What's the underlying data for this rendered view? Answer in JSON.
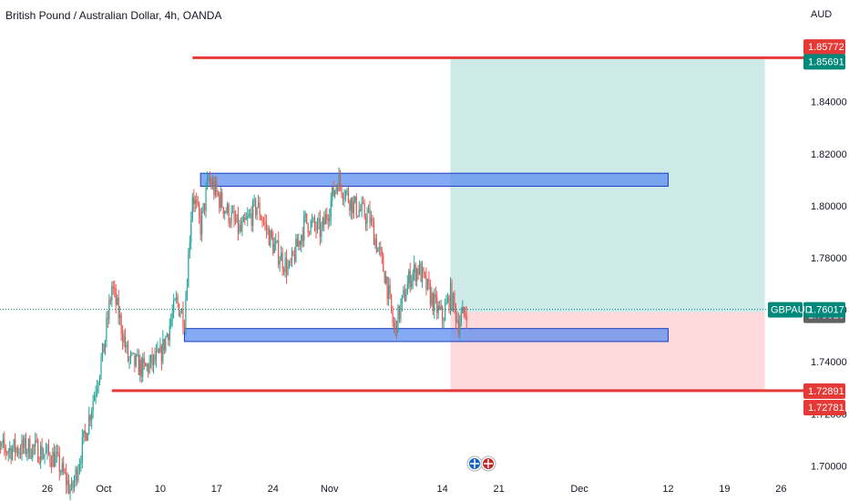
{
  "title": "British Pound / Australian Dollar, 4h, OANDA",
  "colors": {
    "up": "#26a69a",
    "down": "#ef5350",
    "level_line": "#e53935",
    "zone_fill": "#5c8df0",
    "zone_stroke": "#1e3fbf",
    "profit": "#b2dfdb",
    "loss": "#ffcdd2",
    "current": "#00897b",
    "entry_label": "#616161"
  },
  "chart_data": {
    "type": "candlestick",
    "symbol": "GBPAUD",
    "currency": "AUD",
    "ylim": [
      1.69,
      1.87
    ],
    "y_ticks": [
      "1.70000",
      "1.72000",
      "1.74000",
      "1.76000",
      "1.78000",
      "1.80000",
      "1.82000",
      "1.84000"
    ],
    "x_ticks": [
      "26",
      "Oct",
      "10",
      "17",
      "24",
      "Nov",
      "14",
      "21",
      "Dec",
      "12",
      "19",
      "26"
    ],
    "x_tick_dates": [
      "2022-09-26",
      "2022-10-03",
      "2022-10-10",
      "2022-10-17",
      "2022-10-24",
      "2022-10-31",
      "2022-11-14",
      "2022-11-21",
      "2022-12-01",
      "2022-12-12",
      "2022-12-19",
      "2022-12-26"
    ],
    "current_price": "1.76017",
    "price_labels": [
      {
        "value": "1.85772",
        "role": "target-upper"
      },
      {
        "value": "1.85691",
        "role": "target"
      },
      {
        "value": "1.75910",
        "role": "entry"
      },
      {
        "value": "1.72891",
        "role": "stop"
      },
      {
        "value": "1.72781",
        "role": "stop-lower"
      }
    ],
    "horizontal_lines": [
      {
        "price": 1.8569,
        "from": "2022-10-14",
        "to": "2022-12-30"
      },
      {
        "price": 1.7289,
        "from": "2022-10-04",
        "to": "2022-12-30"
      }
    ],
    "zones": [
      {
        "from": "2022-10-15",
        "to": "2022-12-12",
        "low": 1.8075,
        "high": 1.8125
      },
      {
        "from": "2022-10-13",
        "to": "2022-12-12",
        "low": 1.7478,
        "high": 1.7528
      }
    ],
    "position": {
      "from": "2022-11-15",
      "to": "2022-12-24",
      "entry": 1.7591,
      "target": 1.8569,
      "stop": 1.7289
    },
    "anchors": [
      [
        "2022-09-19",
        1.706
      ],
      [
        "2022-09-24",
        1.707
      ],
      [
        "2022-09-27",
        1.703
      ],
      [
        "2022-09-29",
        1.69
      ],
      [
        "2022-10-01",
        1.716
      ],
      [
        "2022-10-03",
        1.745
      ],
      [
        "2022-10-04",
        1.769
      ],
      [
        "2022-10-05",
        1.756
      ],
      [
        "2022-10-06",
        1.741
      ],
      [
        "2022-10-08",
        1.737
      ],
      [
        "2022-10-10",
        1.742
      ],
      [
        "2022-10-12",
        1.763
      ],
      [
        "2022-10-13",
        1.757
      ],
      [
        "2022-10-14",
        1.805
      ],
      [
        "2022-10-15",
        1.792
      ],
      [
        "2022-10-16",
        1.81
      ],
      [
        "2022-10-18",
        1.799
      ],
      [
        "2022-10-20",
        1.79
      ],
      [
        "2022-10-22",
        1.8
      ],
      [
        "2022-10-24",
        1.785
      ],
      [
        "2022-10-26",
        1.775
      ],
      [
        "2022-10-28",
        1.794
      ],
      [
        "2022-10-30",
        1.79
      ],
      [
        "2022-11-01",
        1.81
      ],
      [
        "2022-11-03",
        1.8
      ],
      [
        "2022-11-05",
        1.795
      ],
      [
        "2022-11-07",
        1.772
      ],
      [
        "2022-11-08",
        1.752
      ],
      [
        "2022-11-10",
        1.773
      ],
      [
        "2022-11-11",
        1.776
      ],
      [
        "2022-11-13",
        1.762
      ],
      [
        "2022-11-14",
        1.757
      ],
      [
        "2022-11-15",
        1.766
      ],
      [
        "2022-11-16",
        1.755
      ],
      [
        "2022-11-17",
        1.7602
      ]
    ]
  }
}
